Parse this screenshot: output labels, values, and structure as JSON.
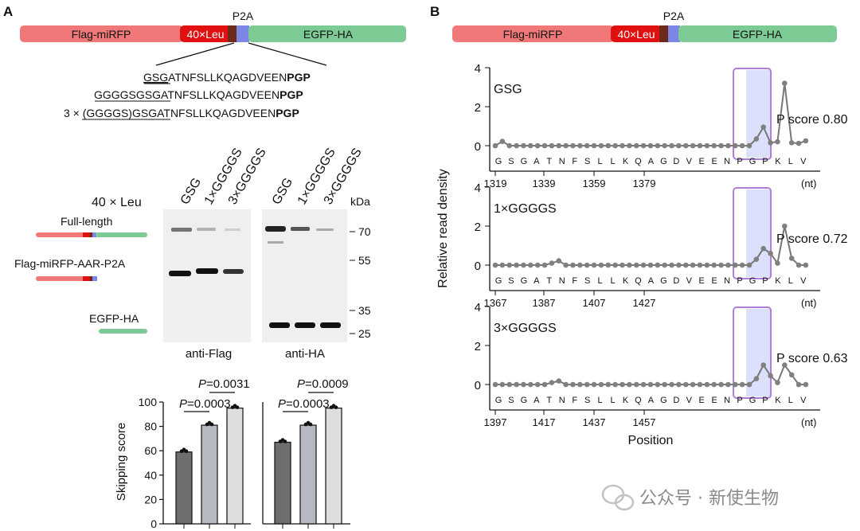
{
  "panel_a": {
    "label": "A",
    "construct": {
      "seg1": "Flag-miRFP",
      "seg2": "40×Leu",
      "p2a": "P2A",
      "seg4": "EGFP-HA",
      "colors": {
        "miRFP": "#f07878",
        "leu": "#e01010",
        "linker": "#6b2a1a",
        "p2a": "#7b86e6",
        "egfp": "#7dcb94"
      }
    },
    "sequences": [
      {
        "prefix": "",
        "linker": "GSG",
        "body": "ATNFSLLKQAGDVEEN",
        "end": "PGP"
      },
      {
        "prefix": "",
        "linker": "GGGGSGSG",
        "body": "ATNFSLLKQAGDVEEN",
        "end": "PGP"
      },
      {
        "prefix": "3 × ",
        "linker": "(GGGGS)GSG",
        "body": "ATNFSLLKQAGDVEEN",
        "end": "PGP"
      }
    ],
    "lanes": [
      "GSG",
      "1×GGGGS",
      "3×GGGGS"
    ],
    "leu_label": "40 × Leu",
    "kda": {
      "title": "kDa",
      "marks": [
        "70",
        "55",
        "35",
        "25"
      ]
    },
    "bands": {
      "full": "Full-length",
      "cleaved": "Flag-miRFP-AAR-P2A",
      "egfp": "EGFP-HA"
    },
    "blots": [
      "anti-Flag",
      "anti-HA"
    ],
    "bar_chart": {
      "ylabel": "Skipping score",
      "ticks": [
        0,
        20,
        40,
        60,
        80,
        100
      ],
      "groups": [
        {
          "name": "anti-Flag",
          "values": [
            59,
            81,
            95
          ],
          "p1": {
            "prefix": "P",
            "text": "=0.0003"
          },
          "p2": {
            "prefix": "P",
            "text": "=0.0031"
          }
        },
        {
          "name": "anti-HA",
          "values": [
            67,
            81,
            95
          ],
          "p1": {
            "prefix": "P",
            "text": "=0.0003"
          },
          "p2": {
            "prefix": "P",
            "text": "=0.0009"
          }
        }
      ],
      "bar_colors": [
        "#6e6e6e",
        "#b7b9c2",
        "#dedede"
      ]
    }
  },
  "panel_b": {
    "label": "B",
    "ylabel": "Relative read density",
    "xlabel": "Position",
    "unit": "(nt)",
    "aa": [
      "G",
      "S",
      "G",
      "A",
      "T",
      "N",
      "F",
      "S",
      "L",
      "L",
      "K",
      "Q",
      "A",
      "G",
      "D",
      "V",
      "E",
      "E",
      "N",
      "P",
      "G",
      "P",
      "K",
      "L",
      "V"
    ],
    "plots": [
      {
        "name": "GSG",
        "score": "P score 0.80",
        "ticks": [
          "1319",
          "1339",
          "1359",
          "1379"
        ],
        "peaks": [
          [
            0.6,
            0.22
          ],
          [
            36.8,
            0.35
          ],
          [
            37.5,
            0.95
          ],
          [
            38.2,
            0.1
          ],
          [
            39.2,
            0.15
          ],
          [
            40.2,
            0.2
          ],
          [
            40.8,
            3.2
          ],
          [
            41.5,
            0.15
          ],
          [
            42.5,
            0.12
          ],
          [
            43.8,
            0.25
          ]
        ]
      },
      {
        "name": "1×GGGGS",
        "score": "P score 0.72",
        "ticks": [
          "1367",
          "1387",
          "1407",
          "1427"
        ],
        "peaks": [
          [
            8.2,
            0.1
          ],
          [
            8.8,
            0.22
          ],
          [
            36.8,
            0.3
          ],
          [
            37.5,
            0.85
          ],
          [
            38.2,
            0.15
          ],
          [
            39.2,
            0.6
          ],
          [
            40.1,
            0.1
          ],
          [
            40.8,
            2.0
          ],
          [
            41.5,
            0.35
          ]
        ]
      },
      {
        "name": "3×GGGGS",
        "score": "P score 0.63",
        "ticks": [
          "1397",
          "1417",
          "1437",
          "1457"
        ],
        "peaks": [
          [
            8.2,
            0.1
          ],
          [
            8.8,
            0.18
          ],
          [
            36.8,
            0.3
          ],
          [
            37.5,
            1.0
          ],
          [
            38.2,
            0.1
          ],
          [
            39.2,
            0.45
          ],
          [
            40.0,
            0.1
          ],
          [
            40.8,
            1.0
          ],
          [
            41.5,
            0.5
          ],
          [
            42.3,
            0.2
          ]
        ]
      }
    ],
    "yticks": [
      0,
      2,
      4
    ]
  },
  "watermark": "公众号 · 新使生物"
}
